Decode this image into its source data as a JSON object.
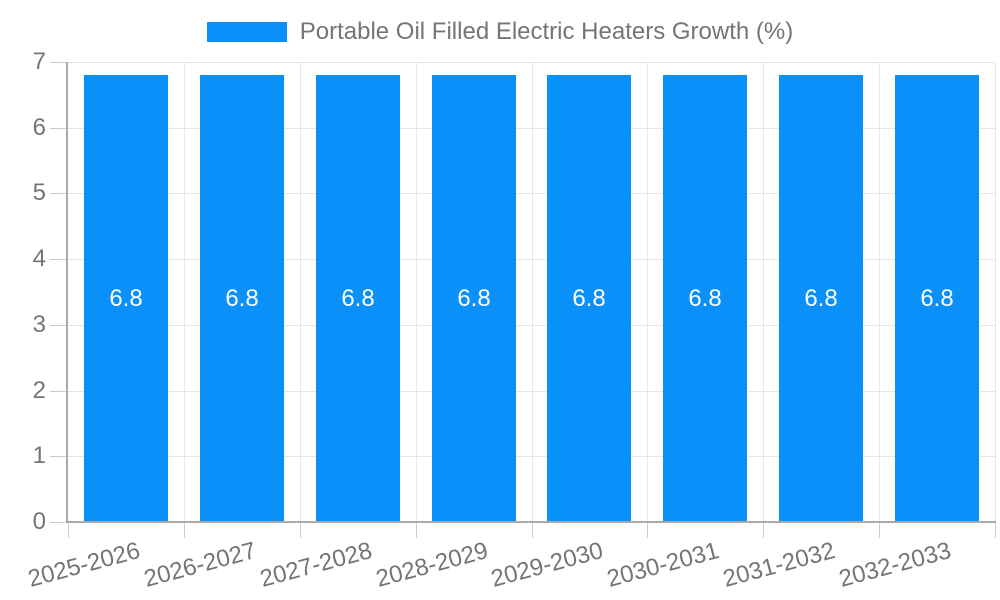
{
  "chart_data": {
    "type": "bar",
    "title": "Portable Oil Filled Electric Heaters Growth (%)",
    "categories": [
      "2025-2026",
      "2026-2027",
      "2027-2028",
      "2028-2029",
      "2029-2030",
      "2030-2031",
      "2031-2032",
      "2032-2033"
    ],
    "series": [
      {
        "name": "Portable Oil Filled Electric Heaters Growth (%)",
        "values": [
          6.8,
          6.8,
          6.8,
          6.8,
          6.8,
          6.8,
          6.8,
          6.8
        ]
      }
    ],
    "bar_value_labels": [
      "6.8",
      "6.8",
      "6.8",
      "6.8",
      "6.8",
      "6.8",
      "6.8",
      "6.8"
    ],
    "xlabel": "",
    "ylabel": "",
    "ylim": [
      0,
      7
    ],
    "ytick_labels": [
      "0",
      "1",
      "2",
      "3",
      "4",
      "5",
      "6",
      "7"
    ],
    "grid": true,
    "legend_position": "top-center",
    "x_tick_label_rotation_deg": -15,
    "colors": {
      "bar": "#0990f9",
      "bar_value_label": "#ffffff",
      "axis_text": "#757575",
      "gridline": "#e6e6e6",
      "axis_line": "#aaaaaa",
      "tick": "#cccccc",
      "background": "#ffffff"
    }
  }
}
